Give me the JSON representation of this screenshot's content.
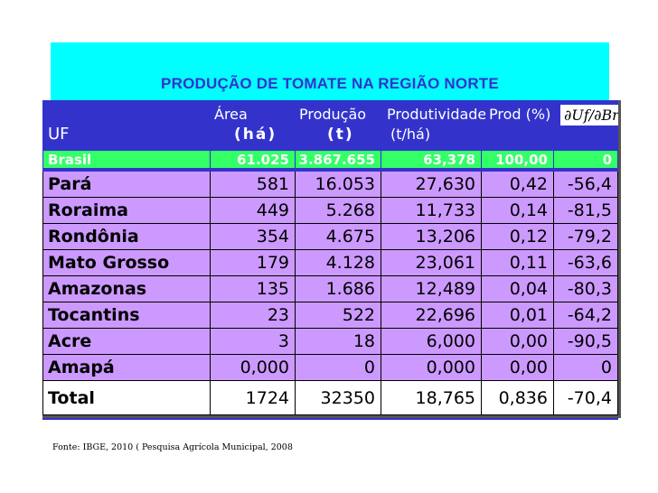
{
  "title": "PRODUÇÃO DE TOMATE NA REGIÃO NORTE",
  "header": {
    "uf": "UF",
    "area_line1": "Área",
    "area_line2": "(há)",
    "producao_line1": "Produção",
    "producao_line2": "(t)",
    "produtividade_line1": "Produtividade",
    "produtividade_line2": "(t/há)",
    "prod_pct": "Prod (%)",
    "last_col": "∂Uf/∂Br"
  },
  "brasil": {
    "uf": "Brasil",
    "area": "61.025",
    "producao": "3.867.655",
    "produtividade": "63,378",
    "prod_pct": "100,00",
    "diff": "0"
  },
  "states": [
    {
      "uf": "Pará",
      "area": "581",
      "producao": "16.053",
      "produtividade": "27,630",
      "prod_pct": "0,42",
      "diff": "-56,4"
    },
    {
      "uf": "Roraima",
      "area": "449",
      "producao": "5.268",
      "produtividade": "11,733",
      "prod_pct": "0,14",
      "diff": "-81,5"
    },
    {
      "uf": "Rondônia",
      "area": "354",
      "producao": "4.675",
      "produtividade": "13,206",
      "prod_pct": "0,12",
      "diff": "-79,2"
    },
    {
      "uf": "Mato Grosso",
      "area": "179",
      "producao": "4.128",
      "produtividade": "23,061",
      "prod_pct": "0,11",
      "diff": "-63,6"
    },
    {
      "uf": "Amazonas",
      "area": "135",
      "producao": "1.686",
      "produtividade": "12,489",
      "prod_pct": "0,04",
      "diff": "-80,3"
    },
    {
      "uf": "Tocantins",
      "area": "23",
      "producao": "522",
      "produtividade": "22,696",
      "prod_pct": "0,01",
      "diff": "-64,2"
    },
    {
      "uf": "Acre",
      "area": "3",
      "producao": "18",
      "produtividade": "6,000",
      "prod_pct": "0,00",
      "diff": "-90,5"
    },
    {
      "uf": "Amapá",
      "area": "0,000",
      "producao": "0",
      "produtividade": "0,000",
      "prod_pct": "0,00",
      "diff": "0"
    }
  ],
  "total": {
    "uf": "Total",
    "area": "1724",
    "producao": "32350",
    "produtividade": "18,765",
    "prod_pct": "0,836",
    "diff": "-70,4"
  },
  "source": "Fonte: IBGE, 2010 ( Pesquisa Agrícola Municipal, 2008",
  "colors": {
    "banner": "#00ffff",
    "title": "#3333cc",
    "header_bg": "#3333cc",
    "brasil_row": "#33ff66",
    "state_rows": "#cc99ff"
  }
}
